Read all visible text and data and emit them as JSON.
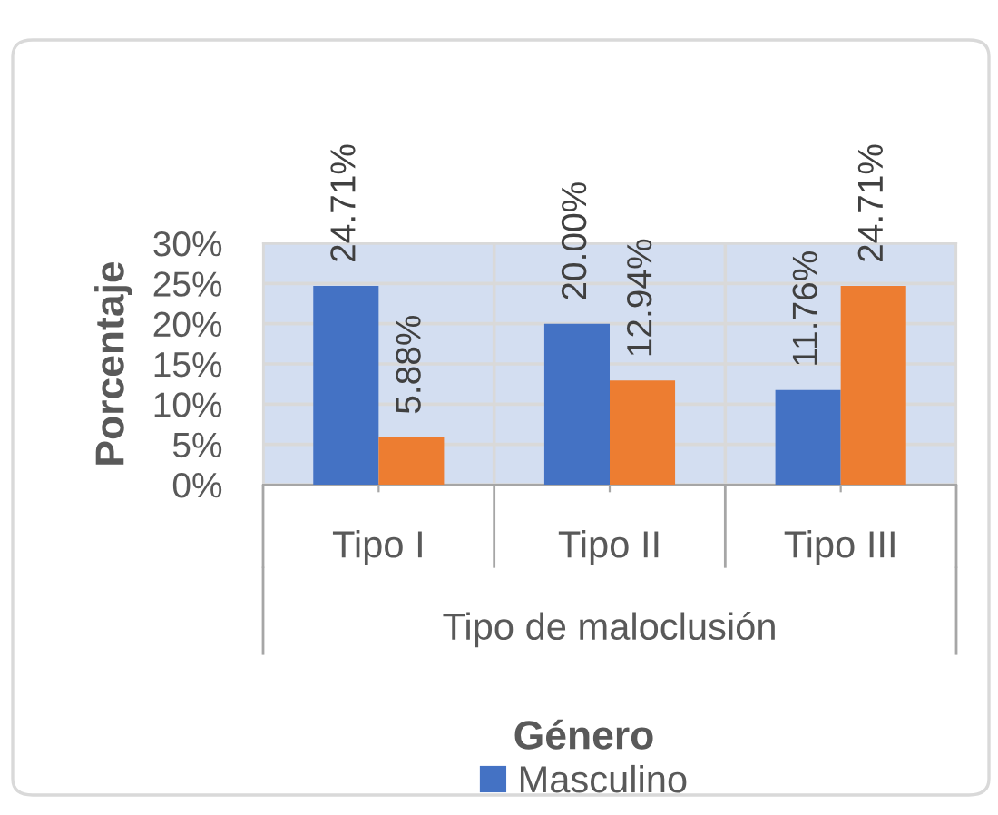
{
  "chart_data": {
    "type": "bar",
    "categories": [
      "Tipo I",
      "Tipo II",
      "Tipo III"
    ],
    "series": [
      {
        "name": "Masculino",
        "color": "#4472c4",
        "values": [
          24.71,
          20.0,
          11.76
        ],
        "value_labels": [
          "24.71%",
          "20.00%",
          "11.76%"
        ]
      },
      {
        "color": "#ed7d31",
        "values": [
          5.88,
          12.94,
          24.71
        ],
        "value_labels": [
          "5.88%",
          "12.94%",
          "24.71%"
        ]
      }
    ],
    "xlabel": "Tipo de maloclusión",
    "ylabel": "Porcentaje",
    "legend_title": "Género",
    "legend": "bottom",
    "ylim": [
      0,
      30
    ],
    "yticks": [
      {
        "value": 0,
        "label": "0%"
      },
      {
        "value": 5,
        "label": "5%"
      },
      {
        "value": 10,
        "label": "10%"
      },
      {
        "value": 15,
        "label": "15%"
      },
      {
        "value": 20,
        "label": "20%"
      },
      {
        "value": 25,
        "label": "25%"
      },
      {
        "value": 30,
        "label": "30%"
      }
    ],
    "grid": true
  }
}
